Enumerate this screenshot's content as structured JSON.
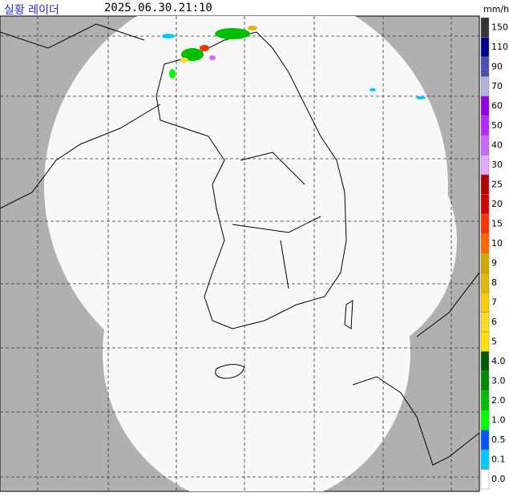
{
  "header": {
    "title": "실황 레이더",
    "time": "2025.06.30.21:10",
    "unit": "mm/h"
  },
  "legend": [
    {
      "label": "150",
      "color": "#333333"
    },
    {
      "label": "110",
      "color": "#000390"
    },
    {
      "label": "90",
      "color": "#4c4eb1"
    },
    {
      "label": "70",
      "color": "#b3b4de"
    },
    {
      "label": "60",
      "color": "#9300e4"
    },
    {
      "label": "50",
      "color": "#b329ff"
    },
    {
      "label": "40",
      "color": "#c969ff"
    },
    {
      "label": "30",
      "color": "#e0a9ff"
    },
    {
      "label": "25",
      "color": "#b40000"
    },
    {
      "label": "20",
      "color": "#d20000"
    },
    {
      "label": "15",
      "color": "#ff3200"
    },
    {
      "label": "10",
      "color": "#ff6600"
    },
    {
      "label": "9",
      "color": "#ccaa00"
    },
    {
      "label": "8",
      "color": "#e0b900"
    },
    {
      "label": "7",
      "color": "#f9cd00"
    },
    {
      "label": "6",
      "color": "#ffdc1f"
    },
    {
      "label": "5",
      "color": "#ffe100"
    },
    {
      "label": "4.0",
      "color": "#005a00"
    },
    {
      "label": "3.0",
      "color": "#008c00"
    },
    {
      "label": "2.0",
      "color": "#00be00"
    },
    {
      "label": "1.0",
      "color": "#00ff00"
    },
    {
      "label": "0.5",
      "color": "#0055ff"
    },
    {
      "label": "0.1",
      "color": "#00c8ff"
    },
    {
      "label": "0.0",
      "color": "#ffffff"
    }
  ]
}
